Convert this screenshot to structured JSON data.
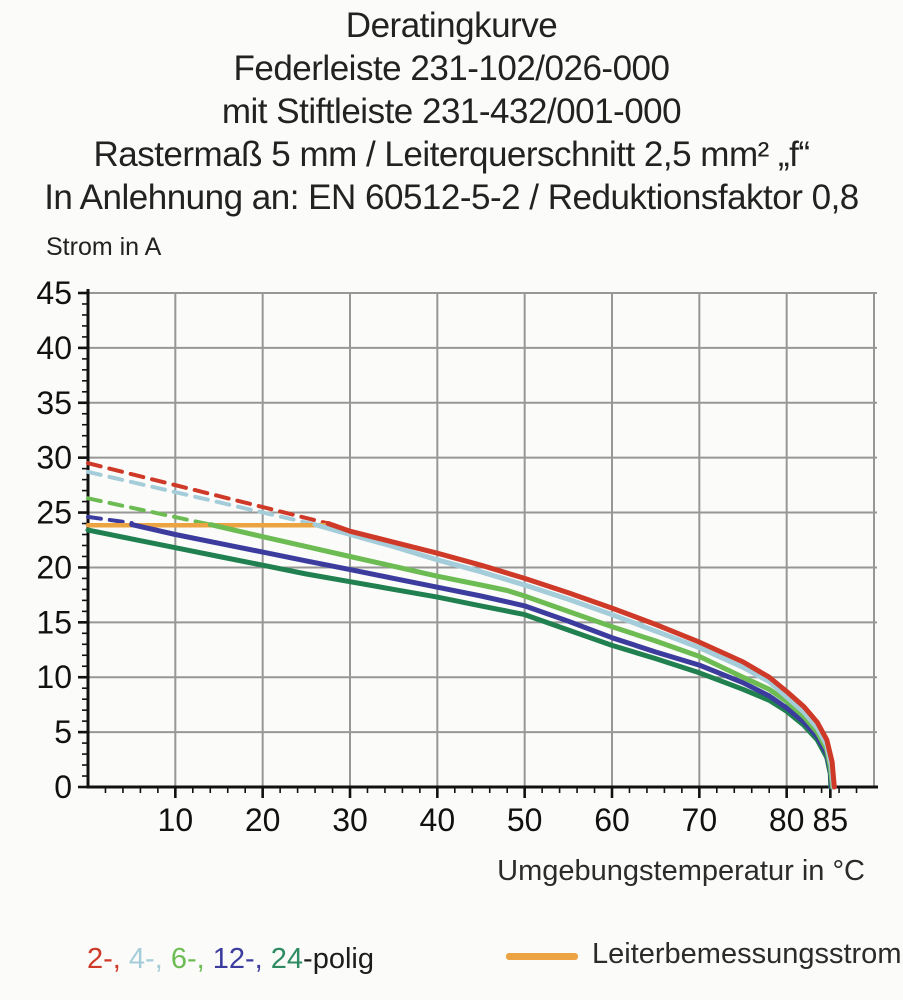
{
  "title": {
    "lines": [
      "Deratingkurve",
      "Federleiste 231-102/026-000",
      "mit Stiftleiste 231-432/001-000",
      "Rastermaß 5 mm / Leiterquerschnitt 2,5 mm² „f“",
      "In Anlehnung an: EN 60512-5-2 / Reduktionsfaktor 0,8"
    ]
  },
  "chart_data": {
    "type": "line",
    "title": "Deratingkurve Federleiste 231-102/026-000 mit Stiftleiste 231-432/001-000",
    "xlabel": "Umgebungstemperatur in °C",
    "ylabel": "Strom in A",
    "xlim": [
      0,
      90
    ],
    "ylim": [
      0,
      45
    ],
    "x_major_ticks": [
      10,
      20,
      30,
      40,
      50,
      60,
      70,
      80,
      85
    ],
    "x_gridlines": [
      10,
      20,
      30,
      40,
      50,
      60,
      70,
      80,
      90
    ],
    "x_minor_step": 2,
    "y_major_ticks": [
      0,
      5,
      10,
      15,
      20,
      25,
      30,
      35,
      40,
      45
    ],
    "y_gridlines": [
      5,
      10,
      15,
      20,
      25,
      30,
      35,
      40,
      45
    ],
    "y_minor_step": 1,
    "grid": true,
    "legend_position": "bottom",
    "series": [
      {
        "name": "2-polig",
        "color": "#cf3a28",
        "dashed_points": [
          [
            0,
            29.5
          ],
          [
            27.5,
            24.0
          ]
        ],
        "points": [
          [
            27.5,
            24.0
          ],
          [
            30,
            23.3
          ],
          [
            35,
            22.3
          ],
          [
            40,
            21.3
          ],
          [
            45,
            20.2
          ],
          [
            50,
            19.0
          ],
          [
            55,
            17.7
          ],
          [
            60,
            16.3
          ],
          [
            65,
            14.8
          ],
          [
            70,
            13.2
          ],
          [
            75,
            11.4
          ],
          [
            78,
            10.0
          ],
          [
            80,
            8.7
          ],
          [
            82,
            7.3
          ],
          [
            83.5,
            5.9
          ],
          [
            84.6,
            4.3
          ],
          [
            85.2,
            2.3
          ],
          [
            85.45,
            0
          ]
        ]
      },
      {
        "name": "4-polig",
        "color": "#a5cdd9",
        "dashed_points": [
          [
            0,
            28.7
          ],
          [
            26,
            23.9
          ]
        ],
        "points": [
          [
            26,
            23.9
          ],
          [
            30,
            23.0
          ],
          [
            35,
            21.9
          ],
          [
            40,
            20.7
          ],
          [
            45,
            19.6
          ],
          [
            50,
            18.4
          ],
          [
            55,
            17.1
          ],
          [
            60,
            15.7
          ],
          [
            65,
            14.2
          ],
          [
            70,
            12.7
          ],
          [
            75,
            10.9
          ],
          [
            78,
            9.6
          ],
          [
            80,
            8.2
          ],
          [
            82,
            6.8
          ],
          [
            83.5,
            5.4
          ],
          [
            84.6,
            3.8
          ],
          [
            85.1,
            2.0
          ],
          [
            85.35,
            0
          ]
        ]
      },
      {
        "name": "6-polig",
        "color": "#6cbc53",
        "dashed_points": [
          [
            0,
            26.3
          ],
          [
            14,
            23.9
          ]
        ],
        "points": [
          [
            14,
            23.9
          ],
          [
            20,
            22.8
          ],
          [
            25,
            21.9
          ],
          [
            30,
            21.0
          ],
          [
            35,
            20.1
          ],
          [
            40,
            19.2
          ],
          [
            45,
            18.4
          ],
          [
            48,
            17.9
          ],
          [
            50,
            17.4
          ],
          [
            55,
            16.0
          ],
          [
            60,
            14.6
          ],
          [
            65,
            13.3
          ],
          [
            70,
            11.9
          ],
          [
            75,
            10.0
          ],
          [
            78,
            8.9
          ],
          [
            80,
            7.8
          ],
          [
            82,
            6.4
          ],
          [
            83.5,
            5.0
          ],
          [
            84.6,
            3.4
          ],
          [
            85,
            1.8
          ],
          [
            85.25,
            0
          ]
        ]
      },
      {
        "name": "12-polig",
        "color": "#3c3c9f",
        "dashed_points": [
          [
            0,
            24.6
          ],
          [
            5,
            24.05
          ]
        ],
        "points": [
          [
            5,
            23.9
          ],
          [
            10,
            23.0
          ],
          [
            15,
            22.2
          ],
          [
            20,
            21.4
          ],
          [
            25,
            20.6
          ],
          [
            30,
            19.8
          ],
          [
            35,
            19.0
          ],
          [
            40,
            18.2
          ],
          [
            45,
            17.4
          ],
          [
            50,
            16.5
          ],
          [
            55,
            15.1
          ],
          [
            60,
            13.6
          ],
          [
            65,
            12.3
          ],
          [
            70,
            11.1
          ],
          [
            75,
            9.5
          ],
          [
            78,
            8.3
          ],
          [
            80,
            7.2
          ],
          [
            82,
            5.9
          ],
          [
            83.5,
            4.6
          ],
          [
            84.6,
            3.0
          ],
          [
            85,
            1.5
          ],
          [
            85.15,
            0
          ]
        ]
      },
      {
        "name": "24-polig",
        "color": "#20804f",
        "points": [
          [
            0,
            23.4
          ],
          [
            5,
            22.6
          ],
          [
            10,
            21.8
          ],
          [
            15,
            21.0
          ],
          [
            20,
            20.2
          ],
          [
            25,
            19.4
          ],
          [
            30,
            18.7
          ],
          [
            35,
            18.0
          ],
          [
            40,
            17.3
          ],
          [
            45,
            16.5
          ],
          [
            50,
            15.7
          ],
          [
            55,
            14.3
          ],
          [
            60,
            12.9
          ],
          [
            65,
            11.7
          ],
          [
            70,
            10.4
          ],
          [
            75,
            8.9
          ],
          [
            78,
            7.9
          ],
          [
            80,
            6.9
          ],
          [
            82,
            5.6
          ],
          [
            83.5,
            4.3
          ],
          [
            84.6,
            2.7
          ],
          [
            85,
            1.2
          ],
          [
            85.05,
            0
          ]
        ]
      }
    ]
  },
  "rated_current_line": {
    "label": "Leiterbemessungsstrom",
    "color": "#eca342",
    "points": [
      [
        0,
        23.85
      ],
      [
        27.7,
        23.85
      ]
    ]
  },
  "legend": {
    "entries": [
      {
        "text": "2-,",
        "color": "#cf3a28"
      },
      {
        "text": "4-,",
        "color": "#a5cdd9"
      },
      {
        "text": "6-,",
        "color": "#6cbc53"
      },
      {
        "text": "12-,",
        "color": "#3c3c9f"
      },
      {
        "text": "24",
        "color": "#2e8b62"
      }
    ],
    "suffix": {
      "text": "-polig",
      "color": "#1c1c1c"
    }
  },
  "style": {
    "grid_color": "#979797",
    "axis_color": "#111111",
    "tick_label_color": "#111111"
  }
}
